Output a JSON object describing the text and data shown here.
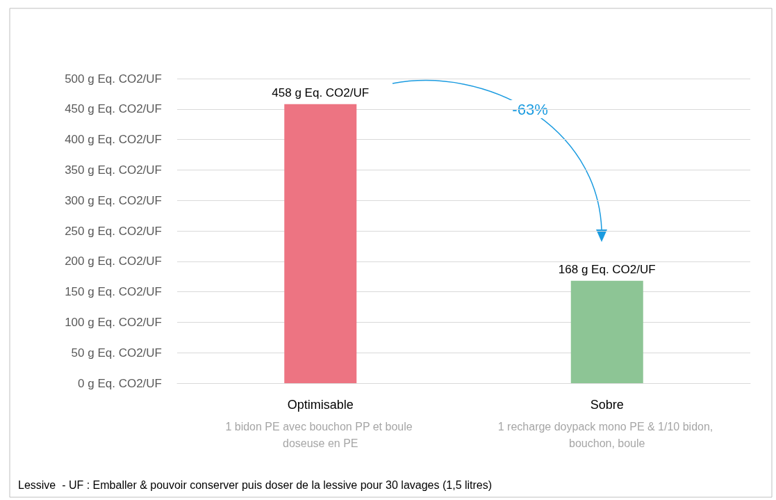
{
  "chart_data": {
    "type": "bar",
    "categories": [
      "Optimisable",
      "Sobre"
    ],
    "values": [
      458,
      168
    ],
    "colors": [
      "#ed7482",
      "#8dc595"
    ],
    "value_labels": [
      "458 g Eq. CO2/UF",
      "168 g Eq. CO2/UF"
    ],
    "ylim": [
      0,
      500
    ],
    "yticks": [
      0,
      50,
      100,
      150,
      200,
      250,
      300,
      350,
      400,
      450,
      500
    ],
    "ylabel": "g Eq. CO2/UF",
    "grid": "y",
    "annotations": [
      "1 bidon PE avec bouchon PP et boule doseuse en PE",
      "1 recharge doypack mono PE & 1/10 bidon, bouchon, boule",
      "-63%",
      "Lessive  - UF : Emballer & pouvoir conserver puis doser de la lessive pour 30 lavages (1,5 litres)"
    ]
  }
}
